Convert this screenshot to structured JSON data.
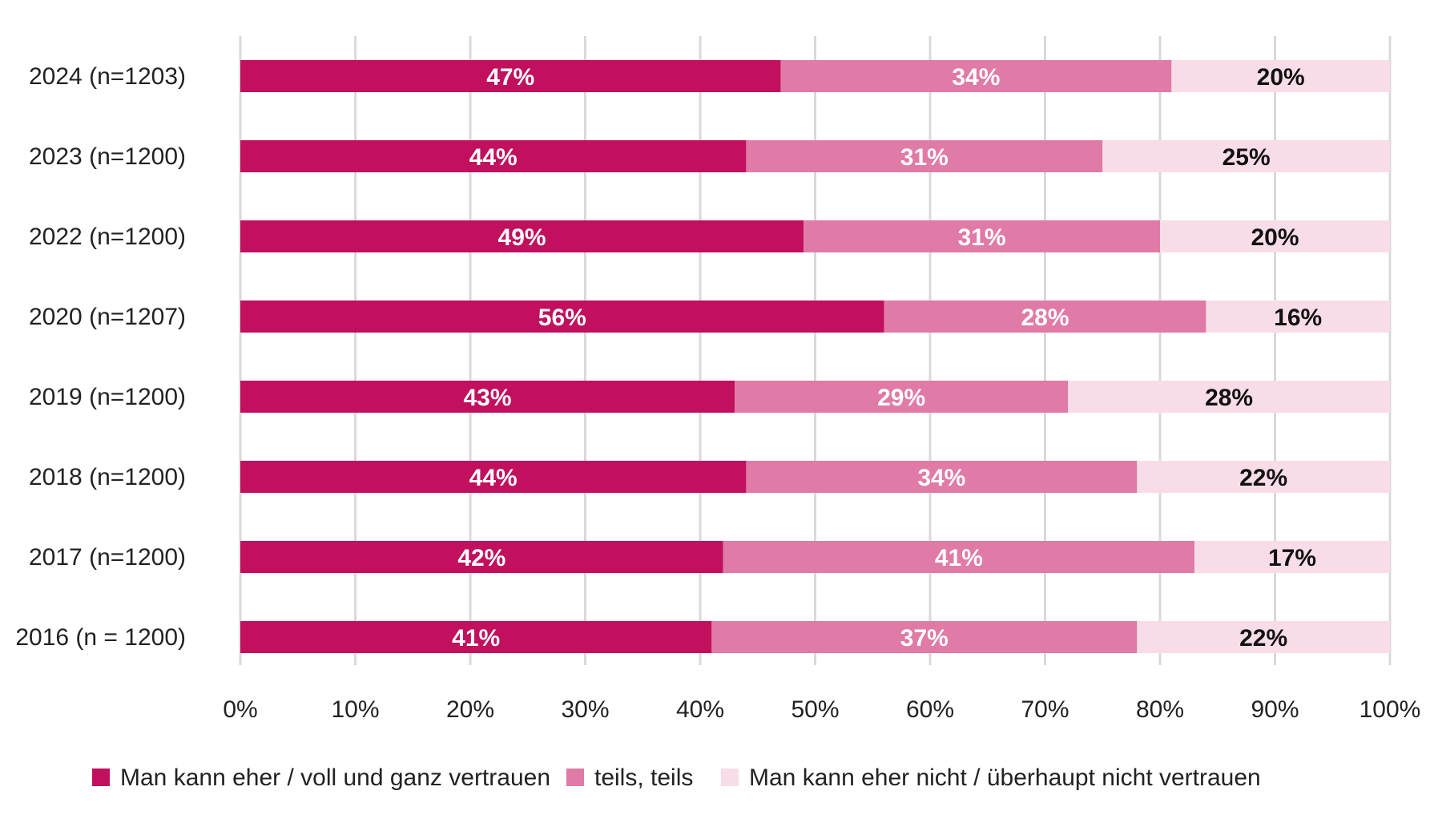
{
  "chart_data": {
    "type": "bar",
    "orientation": "horizontal",
    "stacked": true,
    "categories": [
      "2024 (n=1203)",
      "2023 (n=1200)",
      "2022 (n=1200)",
      "2020 (n=1207)",
      "2019 (n=1200)",
      "2018 (n=1200)",
      "2017 (n=1200)",
      "2016 (n = 1200)"
    ],
    "series": [
      {
        "name": "Man kann eher / voll und ganz vertrauen",
        "color": "#c0105e",
        "label_color": "#ffffff",
        "values": [
          47,
          44,
          49,
          56,
          43,
          44,
          42,
          41
        ]
      },
      {
        "name": "teils, teils",
        "color": "#e07aa6",
        "label_color": "#ffffff",
        "values": [
          34,
          31,
          31,
          28,
          29,
          34,
          41,
          37
        ]
      },
      {
        "name": "Man kann eher nicht / überhaupt nicht vertrauen",
        "color": "#f8dde8",
        "label_color": "#111111",
        "values": [
          20,
          25,
          20,
          16,
          28,
          22,
          17,
          22
        ]
      }
    ],
    "value_suffix": "%",
    "xlim": [
      0,
      100
    ],
    "x_ticks": [
      "0%",
      "10%",
      "20%",
      "30%",
      "40%",
      "50%",
      "60%",
      "70%",
      "80%",
      "90%",
      "100%"
    ],
    "grid": "vertical",
    "legend_position": "bottom",
    "title": "",
    "xlabel": "",
    "ylabel": ""
  }
}
